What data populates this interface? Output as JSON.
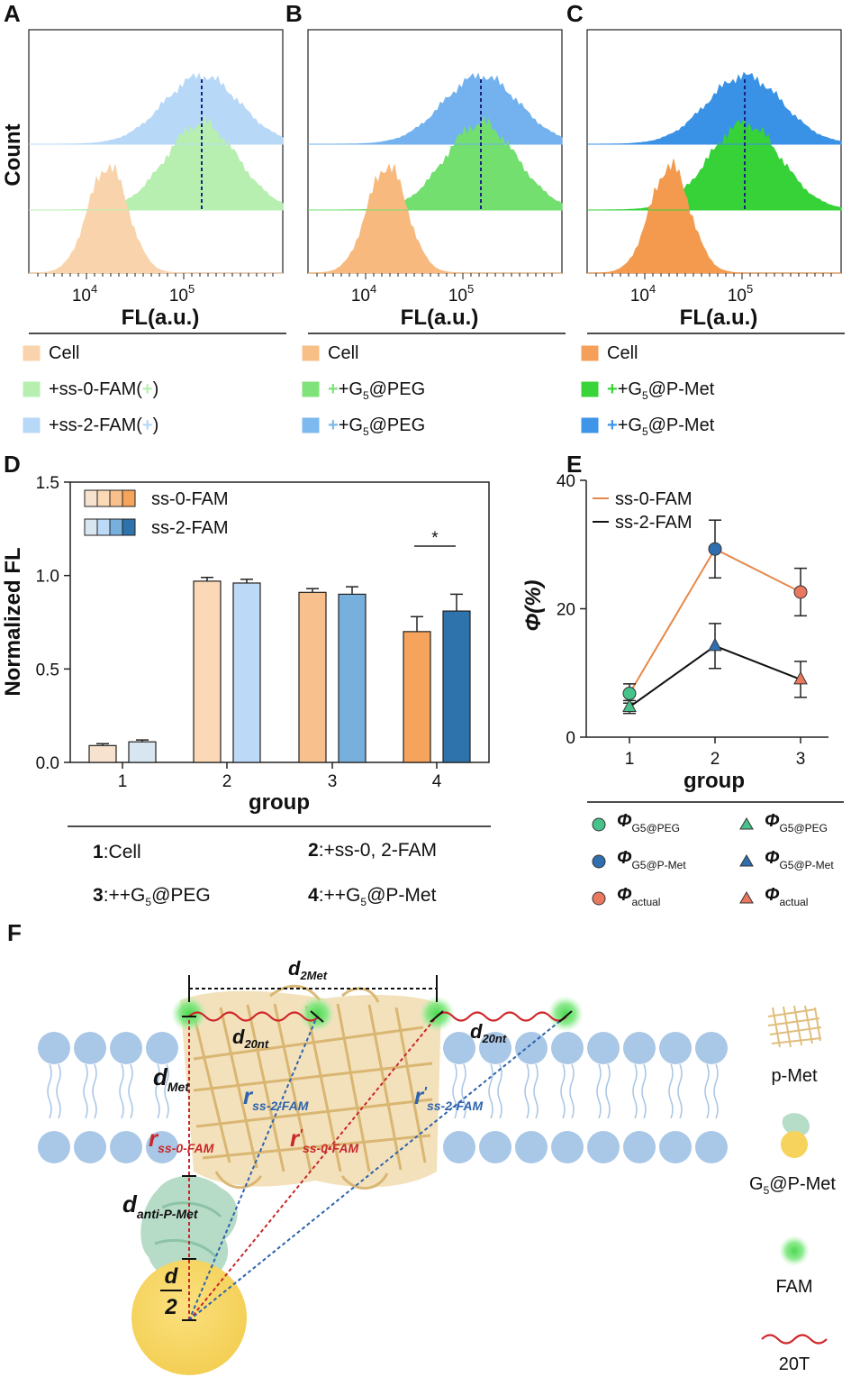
{
  "panels": {
    "A": "A",
    "B": "B",
    "C": "C",
    "D": "D",
    "E": "E",
    "F": "F"
  },
  "histograms": {
    "ylabel": "Count",
    "xlabel": "FL(a.u.)",
    "tick_base": "10",
    "tick_exp": [
      "4",
      "5"
    ],
    "panels": [
      {
        "key": "A",
        "legend": [
          {
            "pre": "",
            "sym": "",
            "text": "Cell",
            "post": "",
            "color": "#f9d3ab"
          },
          {
            "pre": "+ss-0-FAM(",
            "sym": "+",
            "text": "",
            "post": ")",
            "color": "#b7efb0"
          },
          {
            "pre": "+ss-2-FAM(",
            "sym": "+",
            "text": "",
            "post": ")",
            "color": "#b8d8f7"
          }
        ],
        "fills": [
          "#f9d3ab",
          "#b7efb0",
          "#b8d8f7"
        ]
      },
      {
        "key": "B",
        "legend": [
          {
            "pre": "",
            "sym": "",
            "text": "Cell",
            "post": "",
            "color": "#f7bf86"
          },
          {
            "pre": "",
            "sym": "+",
            "text": "+G",
            "sub": "5",
            "post": "@PEG",
            "color": "#7fe27a"
          },
          {
            "pre": "",
            "sym": "+",
            "text": "+G",
            "sub": "5",
            "post": "@PEG",
            "color": "#7db8ef"
          }
        ],
        "fills": [
          "#f7b97d",
          "#72df6e",
          "#73b2ee"
        ]
      },
      {
        "key": "C",
        "legend": [
          {
            "pre": "",
            "sym": "",
            "text": "Cell",
            "post": "",
            "color": "#f4a05a"
          },
          {
            "pre": "",
            "sym": "+",
            "text": "+G",
            "sub": "5",
            "post": "@P-Met",
            "color": "#39d33a"
          },
          {
            "pre": "",
            "sym": "+",
            "text": "+G",
            "sub": "5",
            "post": "@P-Met",
            "color": "#3f95e8"
          }
        ],
        "fills": [
          "#f39a4e",
          "#36d238",
          "#3a92e6"
        ]
      }
    ]
  },
  "chart_data": [
    {
      "type": "bar",
      "panel": "D",
      "categories": [
        "1",
        "2",
        "3",
        "4"
      ],
      "series": [
        {
          "name": "ss-0-FAM",
          "values": [
            0.09,
            0.97,
            0.91,
            0.7
          ],
          "errors": [
            0.01,
            0.02,
            0.02,
            0.08
          ],
          "colors": [
            "#f7e2cf",
            "#fbd9b6",
            "#f8c08c",
            "#f6a45b"
          ]
        },
        {
          "name": "ss-2-FAM",
          "values": [
            0.11,
            0.96,
            0.9,
            0.81
          ],
          "errors": [
            0.01,
            0.02,
            0.04,
            0.09
          ],
          "colors": [
            "#d8e6f1",
            "#bcdaf7",
            "#78b0dd",
            "#2f73ad"
          ]
        }
      ],
      "xlabel": "group",
      "ylabel": "Normalized FL",
      "ylim": [
        0,
        1.5
      ],
      "yticks": [
        "0.0",
        "0.5",
        "1.0",
        "1.5"
      ],
      "significance": "*",
      "legend_position": "top-left"
    },
    {
      "type": "line",
      "panel": "E",
      "x": [
        1,
        2,
        3
      ],
      "series": [
        {
          "name": "ss-0-FAM",
          "values": [
            6.8,
            29.3,
            22.6
          ],
          "errors": [
            1.5,
            4.5,
            3.7
          ],
          "color": "#e8884a",
          "markers": [
            "circle",
            "circle",
            "circle"
          ],
          "marker_colors": [
            "#48c28b",
            "#2f6fb0",
            "#e9785e"
          ]
        },
        {
          "name": "ss-2-FAM",
          "values": [
            4.7,
            14.2,
            9.0
          ],
          "errors": [
            1.0,
            3.5,
            2.8
          ],
          "color": "#111111",
          "markers": [
            "triangle",
            "triangle",
            "triangle"
          ],
          "marker_colors": [
            "#48c28b",
            "#2f6fb0",
            "#e9785e"
          ]
        }
      ],
      "xlabel": "group",
      "ylabel": "Φ(%)",
      "ylim": [
        0,
        40
      ],
      "yticks": [
        "0",
        "20",
        "40"
      ],
      "xticks": [
        "1",
        "2",
        "3"
      ],
      "legend_position": "top-left"
    }
  ],
  "group_legend": [
    {
      "num": "1",
      "text": ":Cell"
    },
    {
      "num": "2",
      "text": ":+ss-0, 2-FAM"
    },
    {
      "num": "3",
      "pre": ":++G",
      "sub": "5",
      "post": "@PEG"
    },
    {
      "num": "4",
      "pre": ":++G",
      "sub": "5",
      "post": "@P-Met"
    }
  ],
  "phi_legend": [
    {
      "sym": "Φ",
      "sub": "G5@PEG",
      "shape": "circle",
      "color": "#48c28b"
    },
    {
      "sym": "Φ",
      "sub": "G5@PEG",
      "shape": "triangle",
      "color": "#48c28b"
    },
    {
      "sym": "Φ",
      "sub": "G5@P-Met",
      "shape": "circle",
      "color": "#2f6fb0"
    },
    {
      "sym": "Φ",
      "sub": "G5@P-Met",
      "shape": "triangle",
      "color": "#2f6fb0"
    },
    {
      "sym": "Φ",
      "sub": "actual",
      "shape": "circle",
      "color": "#e9785e"
    },
    {
      "sym": "Φ",
      "sub": "actual",
      "shape": "triangle",
      "color": "#e9785e"
    }
  ],
  "schematic": {
    "d2met": "d",
    "d2met_sub": "2Met",
    "d20nt_a": "d",
    "d20nt_a_sub": "20nt",
    "d20nt_b": "d",
    "d20nt_b_sub": "20nt",
    "dmet": "d",
    "dmet_sub": "Met",
    "rss2": "r",
    "rss2_sub": "ss-2-FAM",
    "rpss2": "r",
    "rpss2_mark": "'",
    "rpss2_sub": "ss-2-FAM",
    "rss0": "r",
    "rss0_sub": "ss-0-FAM",
    "rpss0": "r",
    "rpss0_mark": "'",
    "rpss0_sub": "ss-0-FAM",
    "danti": "d",
    "danti_sub": "anti-P-Met",
    "dhalf_num": "d",
    "dhalf_den": "2",
    "legend": {
      "pmet": "p-Met",
      "g5": "G",
      "g5_sub": "5",
      "g5_post": "@P-Met",
      "fam": "FAM",
      "t20": "20T"
    },
    "colors": {
      "red": "#c8282a",
      "blue": "#2d64ac",
      "membrane": "#a9c7e6",
      "protein": "#e7c78b",
      "np": "#f7d565",
      "fam": "#66e06a"
    }
  }
}
